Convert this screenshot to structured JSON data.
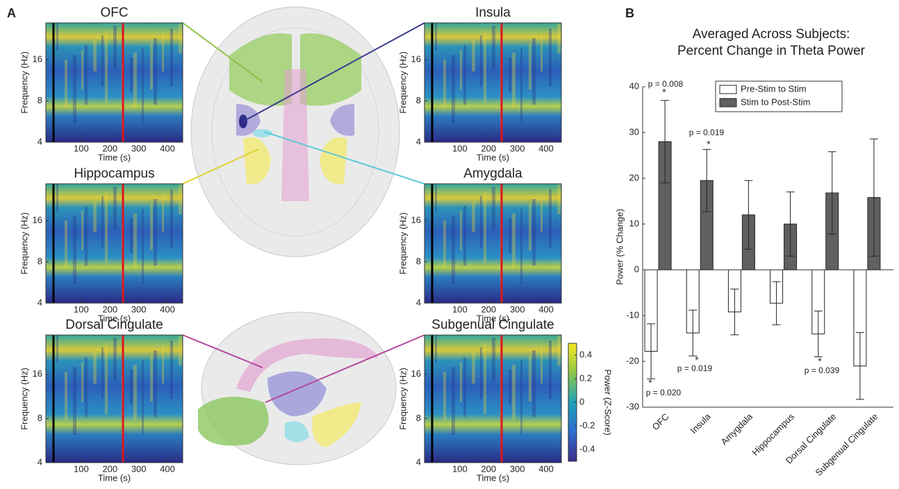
{
  "panels": [
    "A",
    "B"
  ],
  "chart_data": [
    {
      "type": "spectrogram",
      "title": "OFC",
      "xlabel": "Time (s)",
      "ylabel": "Frequency (Hz)",
      "xlim": [
        -23,
        453
      ],
      "xticks": [
        100,
        200,
        300,
        400
      ],
      "ylim": [
        4,
        29.7
      ],
      "yticks": [
        4,
        8,
        16
      ],
      "ylog": true
    },
    {
      "type": "spectrogram",
      "title": "Insula",
      "xlabel": "Time (s)",
      "ylabel": "Frequency (Hz)",
      "xlim": [
        -23,
        453
      ],
      "xticks": [
        100,
        200,
        300,
        400
      ],
      "ylim": [
        4,
        29.7
      ],
      "yticks": [
        4,
        8,
        16
      ],
      "ylog": true
    },
    {
      "type": "spectrogram",
      "title": "Hippocampus",
      "xlabel": "Time (s)",
      "ylabel": "Frequency (Hz)",
      "xlim": [
        -23,
        453
      ],
      "xticks": [
        100,
        200,
        300,
        400
      ],
      "ylim": [
        4,
        29.7
      ],
      "yticks": [
        4,
        8,
        16
      ],
      "ylog": true
    },
    {
      "type": "spectrogram",
      "title": "Amygdala",
      "xlabel": "Time (s)",
      "ylabel": "Frequency (Hz)",
      "xlim": [
        -23,
        453
      ],
      "xticks": [
        100,
        200,
        300,
        400
      ],
      "ylim": [
        4,
        29.7
      ],
      "yticks": [
        4,
        8,
        16
      ],
      "ylog": true
    },
    {
      "type": "spectrogram",
      "title": "Dorsal Cingulate",
      "xlabel": "Time (s)",
      "ylabel": "Frequency (Hz)",
      "xlim": [
        -23,
        453
      ],
      "xticks": [
        100,
        200,
        300,
        400
      ],
      "ylim": [
        4,
        29.7
      ],
      "yticks": [
        4,
        8,
        16
      ],
      "ylog": true
    },
    {
      "type": "spectrogram",
      "title": "Subgenual Cingulate",
      "xlabel": "Time (s)",
      "ylabel": "Frequency (Hz)",
      "xlim": [
        -23,
        453
      ],
      "xticks": [
        100,
        200,
        300,
        400
      ],
      "ylim": [
        4,
        29.7
      ],
      "yticks": [
        4,
        8,
        16
      ],
      "ylog": true
    },
    {
      "type": "colorbar",
      "label": "Power (Z-Score)",
      "zlim": [
        -0.5,
        0.5
      ],
      "ticks": [
        0.4,
        0.2,
        0,
        -0.2,
        -0.4
      ]
    },
    {
      "type": "bar",
      "title": [
        "Averaged Across Subjects:",
        "Percent Change in Theta Power"
      ],
      "ylabel": "Power (% Change)",
      "categories": [
        "OFC",
        "Insula",
        "Amygdala",
        "Hippocampus",
        "Dorsal Cingulate",
        "Subgenual Cingulate"
      ],
      "series": [
        {
          "name": "Pre-Stim to Stim",
          "color": "#ffffff",
          "values": [
            -17.8,
            -13.8,
            -9.2,
            -7.3,
            -14,
            -21
          ],
          "errors": [
            6,
            5,
            5,
            4.7,
            5,
            7.3
          ]
        },
        {
          "name": "Stim to Post-Stim",
          "color": "#606060",
          "values": [
            28,
            19.5,
            12,
            10,
            16.8,
            15.8
          ],
          "errors": [
            9,
            6.8,
            7.5,
            7,
            9,
            12.8
          ]
        }
      ],
      "ylim": [
        -30,
        40
      ],
      "yticks": [
        -30,
        -20,
        -10,
        0,
        10,
        20,
        30,
        40
      ],
      "legend": "top-right",
      "annotations": [
        {
          "text": "p = 0.008",
          "star": "*"
        },
        {
          "text": "p = 0.019",
          "star": "*"
        },
        {
          "text": "p = 0.020",
          "star": "*"
        },
        {
          "text": "p = 0.019",
          "star": "*"
        },
        {
          "text": "p = 0.039",
          "star": "*"
        }
      ]
    }
  ]
}
